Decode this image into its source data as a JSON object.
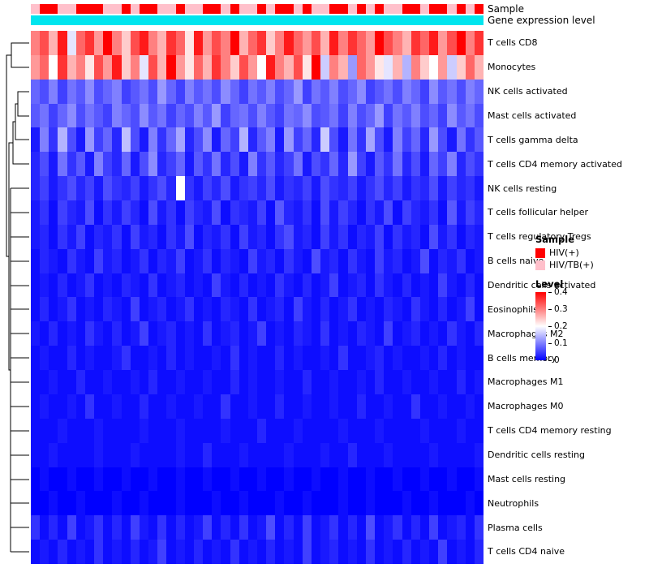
{
  "annotations": {
    "sample_label": "Sample",
    "gene_label": "Gene expression level",
    "gene_color": "#00E5EE",
    "groups_key": {
      "H": {
        "label": "HIV(+)",
        "color": "#FF0000"
      },
      "T": {
        "label": "HIV/TB(+)",
        "color": "#FFC0CB"
      }
    },
    "sample_groups": [
      "T",
      "H",
      "H",
      "T",
      "T",
      "H",
      "H",
      "H",
      "T",
      "T",
      "H",
      "T",
      "H",
      "H",
      "T",
      "T",
      "H",
      "T",
      "T",
      "H",
      "H",
      "T",
      "H",
      "T",
      "T",
      "H",
      "T",
      "H",
      "H",
      "T",
      "H",
      "T",
      "T",
      "H",
      "H",
      "T",
      "H",
      "T",
      "H",
      "T",
      "T",
      "H",
      "H",
      "T",
      "H",
      "H",
      "T",
      "H",
      "T",
      "H"
    ]
  },
  "legend": {
    "sample_title": "Sample",
    "sample_items": [
      {
        "label": "HIV(+)",
        "color": "#FF0000"
      },
      {
        "label": "HIV/TB(+)",
        "color": "#FFC0CB"
      }
    ],
    "level_title": "Level",
    "level_ticks": [
      "0.4",
      "0.3",
      "0.2",
      "0.1",
      "0"
    ],
    "level_gradient": [
      "#FF0000",
      "#FFFFFF",
      "#0000FF"
    ]
  },
  "chart_data": {
    "type": "heatmap",
    "title": "",
    "rows": [
      "T cells CD8",
      "Monocytes",
      "NK cells activated",
      "Mast cells activated",
      "T cells gamma delta",
      "T cells CD4 memory activated",
      "NK cells resting",
      "T cells follicular helper",
      "T cells regulatory Tregs",
      "B cells naive",
      "Dendritic cells activated",
      "Eosinophils",
      "Macrophages M2",
      "B cells memory",
      "Macrophages M1",
      "Macrophages M0",
      "T cells CD4 memory resting",
      "Dendritic cells resting",
      "Mast cells resting",
      "Neutrophils",
      "Plasma cells",
      "T cells CD4 naive"
    ],
    "n_columns": 50,
    "color_scale": {
      "min": 0,
      "mid": 0.2,
      "max": 0.4,
      "min_color": "#0000FF",
      "mid_color": "#FFFFFF",
      "max_color": "#FF0000"
    },
    "values": [
      [
        0.3,
        0.34,
        0.26,
        0.38,
        0.18,
        0.32,
        0.36,
        0.28,
        0.4,
        0.3,
        0.24,
        0.34,
        0.38,
        0.3,
        0.26,
        0.36,
        0.32,
        0.22,
        0.38,
        0.28,
        0.34,
        0.3,
        0.4,
        0.26,
        0.32,
        0.36,
        0.24,
        0.3,
        0.38,
        0.32,
        0.28,
        0.34,
        0.26,
        0.38,
        0.3,
        0.36,
        0.32,
        0.28,
        0.4,
        0.34,
        0.3,
        0.26,
        0.36,
        0.32,
        0.38,
        0.28,
        0.34,
        0.4,
        0.3,
        0.36
      ],
      [
        0.28,
        0.32,
        0.2,
        0.36,
        0.26,
        0.3,
        0.22,
        0.34,
        0.28,
        0.38,
        0.24,
        0.3,
        0.18,
        0.34,
        0.26,
        0.4,
        0.28,
        0.22,
        0.32,
        0.26,
        0.36,
        0.3,
        0.24,
        0.34,
        0.28,
        0.2,
        0.38,
        0.3,
        0.26,
        0.34,
        0.22,
        0.4,
        0.16,
        0.3,
        0.26,
        0.12,
        0.32,
        0.28,
        0.22,
        0.18,
        0.26,
        0.14,
        0.3,
        0.24,
        0.2,
        0.28,
        0.16,
        0.24,
        0.32,
        0.26
      ],
      [
        0.08,
        0.06,
        0.1,
        0.05,
        0.09,
        0.07,
        0.11,
        0.06,
        0.08,
        0.1,
        0.05,
        0.07,
        0.09,
        0.06,
        0.12,
        0.08,
        0.05,
        0.1,
        0.07,
        0.09,
        0.06,
        0.11,
        0.08,
        0.05,
        0.09,
        0.07,
        0.1,
        0.06,
        0.08,
        0.12,
        0.05,
        0.09,
        0.07,
        0.1,
        0.06,
        0.08,
        0.11,
        0.05,
        0.07,
        0.09,
        0.06,
        0.1,
        0.08,
        0.05,
        0.11,
        0.07,
        0.09,
        0.06,
        0.1,
        0.08
      ],
      [
        0.07,
        0.09,
        0.05,
        0.08,
        0.11,
        0.06,
        0.09,
        0.07,
        0.05,
        0.1,
        0.08,
        0.06,
        0.11,
        0.07,
        0.09,
        0.05,
        0.08,
        0.06,
        0.1,
        0.07,
        0.12,
        0.05,
        0.08,
        0.09,
        0.06,
        0.1,
        0.07,
        0.05,
        0.09,
        0.08,
        0.11,
        0.06,
        0.07,
        0.09,
        0.05,
        0.1,
        0.06,
        0.08,
        0.12,
        0.05,
        0.09,
        0.07,
        0.1,
        0.06,
        0.08,
        0.05,
        0.11,
        0.07,
        0.09,
        0.06
      ],
      [
        0.02,
        0.1,
        0.04,
        0.14,
        0.06,
        0.02,
        0.12,
        0.05,
        0.08,
        0.03,
        0.15,
        0.06,
        0.02,
        0.1,
        0.04,
        0.08,
        0.13,
        0.03,
        0.06,
        0.11,
        0.02,
        0.08,
        0.05,
        0.14,
        0.03,
        0.07,
        0.1,
        0.02,
        0.12,
        0.05,
        0.08,
        0.03,
        0.16,
        0.06,
        0.02,
        0.09,
        0.04,
        0.13,
        0.06,
        0.02,
        0.1,
        0.05,
        0.08,
        0.03,
        0.12,
        0.06,
        0.02,
        0.09,
        0.04,
        0.07
      ],
      [
        0.03,
        0.06,
        0.02,
        0.09,
        0.04,
        0.07,
        0.02,
        0.1,
        0.05,
        0.03,
        0.08,
        0.02,
        0.06,
        0.11,
        0.03,
        0.05,
        0.08,
        0.02,
        0.07,
        0.04,
        0.09,
        0.03,
        0.06,
        0.02,
        0.1,
        0.04,
        0.07,
        0.03,
        0.05,
        0.09,
        0.02,
        0.06,
        0.04,
        0.08,
        0.03,
        0.12,
        0.05,
        0.02,
        0.07,
        0.04,
        0.09,
        0.03,
        0.06,
        0.02,
        0.08,
        0.05,
        0.1,
        0.03,
        0.06,
        0.04
      ],
      [
        0.03,
        0.05,
        0.02,
        0.04,
        0.06,
        0.03,
        0.05,
        0.02,
        0.06,
        0.04,
        0.03,
        0.05,
        0.02,
        0.04,
        0.06,
        0.03,
        0.2,
        0.04,
        0.02,
        0.05,
        0.03,
        0.06,
        0.02,
        0.04,
        0.05,
        0.03,
        0.06,
        0.02,
        0.04,
        0.03,
        0.05,
        0.02,
        0.06,
        0.04,
        0.03,
        0.05,
        0.02,
        0.04,
        0.06,
        0.03,
        0.05,
        0.02,
        0.04,
        0.03,
        0.06,
        0.02,
        0.05,
        0.03,
        0.04,
        0.02
      ],
      [
        0.02,
        0.04,
        0.01,
        0.05,
        0.03,
        0.02,
        0.06,
        0.01,
        0.04,
        0.02,
        0.05,
        0.03,
        0.01,
        0.06,
        0.02,
        0.04,
        0.01,
        0.05,
        0.03,
        0.02,
        0.06,
        0.01,
        0.04,
        0.03,
        0.02,
        0.05,
        0.01,
        0.07,
        0.03,
        0.02,
        0.04,
        0.01,
        0.06,
        0.02,
        0.05,
        0.03,
        0.01,
        0.04,
        0.02,
        0.06,
        0.01,
        0.05,
        0.03,
        0.02,
        0.04,
        0.01,
        0.07,
        0.02,
        0.05,
        0.03
      ],
      [
        0.02,
        0.03,
        0.01,
        0.04,
        0.02,
        0.05,
        0.01,
        0.03,
        0.02,
        0.04,
        0.01,
        0.05,
        0.02,
        0.03,
        0.01,
        0.04,
        0.02,
        0.06,
        0.01,
        0.03,
        0.02,
        0.04,
        0.01,
        0.05,
        0.02,
        0.03,
        0.01,
        0.04,
        0.06,
        0.02,
        0.03,
        0.01,
        0.05,
        0.02,
        0.04,
        0.01,
        0.03,
        0.02,
        0.05,
        0.01,
        0.04,
        0.02,
        0.03,
        0.01,
        0.06,
        0.02,
        0.04,
        0.01,
        0.03,
        0.02
      ],
      [
        0.01,
        0.03,
        0.02,
        0.01,
        0.04,
        0.02,
        0.01,
        0.05,
        0.02,
        0.03,
        0.01,
        0.02,
        0.04,
        0.01,
        0.03,
        0.02,
        0.05,
        0.01,
        0.02,
        0.04,
        0.01,
        0.03,
        0.02,
        0.01,
        0.05,
        0.02,
        0.03,
        0.01,
        0.04,
        0.02,
        0.01,
        0.06,
        0.02,
        0.03,
        0.01,
        0.04,
        0.02,
        0.01,
        0.05,
        0.02,
        0.03,
        0.01,
        0.02,
        0.06,
        0.01,
        0.03,
        0.02,
        0.04,
        0.01,
        0.02
      ],
      [
        0.01,
        0.02,
        0.01,
        0.03,
        0.01,
        0.02,
        0.04,
        0.01,
        0.02,
        0.01,
        0.03,
        0.02,
        0.01,
        0.04,
        0.01,
        0.02,
        0.03,
        0.01,
        0.02,
        0.01,
        0.05,
        0.02,
        0.01,
        0.03,
        0.01,
        0.02,
        0.01,
        0.04,
        0.02,
        0.01,
        0.03,
        0.01,
        0.02,
        0.05,
        0.01,
        0.02,
        0.03,
        0.01,
        0.04,
        0.02,
        0.01,
        0.03,
        0.01,
        0.02,
        0.01,
        0.05,
        0.02,
        0.01,
        0.03,
        0.01
      ],
      [
        0.01,
        0.03,
        0.01,
        0.02,
        0.04,
        0.01,
        0.02,
        0.01,
        0.03,
        0.02,
        0.01,
        0.05,
        0.01,
        0.02,
        0.03,
        0.01,
        0.02,
        0.04,
        0.01,
        0.02,
        0.01,
        0.03,
        0.02,
        0.01,
        0.04,
        0.01,
        0.02,
        0.03,
        0.01,
        0.05,
        0.02,
        0.01,
        0.03,
        0.01,
        0.02,
        0.04,
        0.01,
        0.02,
        0.01,
        0.03,
        0.02,
        0.01,
        0.04,
        0.02,
        0.01,
        0.03,
        0.01,
        0.02,
        0.05,
        0.01
      ],
      [
        0.02,
        0.01,
        0.03,
        0.01,
        0.02,
        0.01,
        0.04,
        0.02,
        0.01,
        0.03,
        0.01,
        0.02,
        0.05,
        0.01,
        0.02,
        0.03,
        0.01,
        0.02,
        0.01,
        0.04,
        0.01,
        0.02,
        0.03,
        0.01,
        0.02,
        0.05,
        0.01,
        0.02,
        0.01,
        0.03,
        0.02,
        0.01,
        0.04,
        0.01,
        0.02,
        0.01,
        0.03,
        0.02,
        0.01,
        0.05,
        0.01,
        0.02,
        0.03,
        0.01,
        0.02,
        0.01,
        0.04,
        0.02,
        0.01,
        0.03
      ],
      [
        0.01,
        0.02,
        0.01,
        0.01,
        0.03,
        0.01,
        0.02,
        0.01,
        0.01,
        0.02,
        0.04,
        0.01,
        0.01,
        0.02,
        0.01,
        0.03,
        0.01,
        0.02,
        0.01,
        0.01,
        0.02,
        0.01,
        0.04,
        0.01,
        0.02,
        0.01,
        0.01,
        0.03,
        0.01,
        0.02,
        0.01,
        0.01,
        0.02,
        0.01,
        0.04,
        0.01,
        0.01,
        0.02,
        0.03,
        0.01,
        0.02,
        0.01,
        0.01,
        0.02,
        0.01,
        0.03,
        0.01,
        0.02,
        0.01,
        0.01
      ],
      [
        0.01,
        0.01,
        0.02,
        0.01,
        0.01,
        0.03,
        0.01,
        0.01,
        0.02,
        0.01,
        0.01,
        0.02,
        0.01,
        0.03,
        0.01,
        0.01,
        0.02,
        0.01,
        0.01,
        0.02,
        0.01,
        0.01,
        0.03,
        0.01,
        0.02,
        0.01,
        0.01,
        0.02,
        0.01,
        0.01,
        0.03,
        0.01,
        0.01,
        0.02,
        0.01,
        0.01,
        0.02,
        0.01,
        0.03,
        0.01,
        0.01,
        0.02,
        0.01,
        0.01,
        0.02,
        0.01,
        0.01,
        0.03,
        0.01,
        0.02
      ],
      [
        0.01,
        0.02,
        0.01,
        0.01,
        0.02,
        0.01,
        0.04,
        0.01,
        0.01,
        0.02,
        0.01,
        0.01,
        0.03,
        0.01,
        0.01,
        0.02,
        0.01,
        0.01,
        0.02,
        0.01,
        0.01,
        0.04,
        0.01,
        0.01,
        0.02,
        0.01,
        0.01,
        0.03,
        0.01,
        0.01,
        0.02,
        0.01,
        0.01,
        0.02,
        0.01,
        0.01,
        0.03,
        0.01,
        0.01,
        0.02,
        0.01,
        0.01,
        0.04,
        0.01,
        0.01,
        0.02,
        0.01,
        0.01,
        0.02,
        0.01
      ],
      [
        0.01,
        0.01,
        0.01,
        0.02,
        0.01,
        0.01,
        0.01,
        0.02,
        0.01,
        0.01,
        0.01,
        0.01,
        0.02,
        0.01,
        0.01,
        0.01,
        0.02,
        0.01,
        0.01,
        0.01,
        0.01,
        0.02,
        0.01,
        0.01,
        0.01,
        0.03,
        0.01,
        0.01,
        0.01,
        0.02,
        0.01,
        0.01,
        0.01,
        0.01,
        0.02,
        0.01,
        0.01,
        0.01,
        0.02,
        0.01,
        0.01,
        0.01,
        0.01,
        0.02,
        0.01,
        0.01,
        0.01,
        0.02,
        0.01,
        0.01
      ],
      [
        0.01,
        0.01,
        0.02,
        0.01,
        0.01,
        0.01,
        0.01,
        0.02,
        0.01,
        0.01,
        0.01,
        0.02,
        0.01,
        0.01,
        0.01,
        0.01,
        0.02,
        0.01,
        0.01,
        0.03,
        0.01,
        0.01,
        0.01,
        0.02,
        0.01,
        0.01,
        0.01,
        0.01,
        0.02,
        0.01,
        0.01,
        0.01,
        0.02,
        0.01,
        0.01,
        0.03,
        0.01,
        0.01,
        0.01,
        0.02,
        0.01,
        0.01,
        0.01,
        0.01,
        0.02,
        0.01,
        0.01,
        0.01,
        0.01,
        0.02
      ],
      [
        0.0,
        0.01,
        0.0,
        0.0,
        0.01,
        0.0,
        0.0,
        0.01,
        0.0,
        0.0,
        0.01,
        0.0,
        0.0,
        0.01,
        0.0,
        0.0,
        0.01,
        0.0,
        0.0,
        0.01,
        0.0,
        0.0,
        0.01,
        0.0,
        0.0,
        0.01,
        0.0,
        0.0,
        0.01,
        0.0,
        0.0,
        0.01,
        0.0,
        0.0,
        0.01,
        0.0,
        0.0,
        0.01,
        0.0,
        0.0,
        0.01,
        0.0,
        0.0,
        0.01,
        0.0,
        0.0,
        0.01,
        0.0,
        0.0,
        0.01
      ],
      [
        0.0,
        0.0,
        0.01,
        0.0,
        0.0,
        0.01,
        0.0,
        0.0,
        0.0,
        0.01,
        0.0,
        0.0,
        0.01,
        0.0,
        0.0,
        0.0,
        0.01,
        0.0,
        0.0,
        0.0,
        0.01,
        0.0,
        0.0,
        0.01,
        0.0,
        0.0,
        0.0,
        0.01,
        0.0,
        0.0,
        0.01,
        0.0,
        0.0,
        0.0,
        0.01,
        0.0,
        0.0,
        0.01,
        0.0,
        0.0,
        0.0,
        0.01,
        0.0,
        0.0,
        0.01,
        0.0,
        0.0,
        0.0,
        0.01,
        0.0
      ],
      [
        0.04,
        0.01,
        0.03,
        0.01,
        0.05,
        0.01,
        0.02,
        0.04,
        0.01,
        0.03,
        0.01,
        0.05,
        0.02,
        0.01,
        0.04,
        0.01,
        0.03,
        0.01,
        0.02,
        0.05,
        0.01,
        0.03,
        0.01,
        0.04,
        0.01,
        0.02,
        0.06,
        0.01,
        0.03,
        0.01,
        0.05,
        0.01,
        0.02,
        0.04,
        0.01,
        0.03,
        0.01,
        0.06,
        0.01,
        0.02,
        0.04,
        0.01,
        0.03,
        0.01,
        0.05,
        0.01,
        0.02,
        0.03,
        0.01,
        0.04
      ],
      [
        0.01,
        0.02,
        0.01,
        0.03,
        0.01,
        0.02,
        0.01,
        0.04,
        0.01,
        0.02,
        0.01,
        0.03,
        0.01,
        0.02,
        0.05,
        0.01,
        0.02,
        0.01,
        0.03,
        0.01,
        0.02,
        0.01,
        0.04,
        0.01,
        0.02,
        0.01,
        0.03,
        0.01,
        0.02,
        0.01,
        0.05,
        0.01,
        0.02,
        0.03,
        0.01,
        0.02,
        0.01,
        0.04,
        0.01,
        0.02,
        0.01,
        0.03,
        0.01,
        0.02,
        0.01,
        0.05,
        0.01,
        0.02,
        0.01,
        0.03
      ]
    ]
  }
}
